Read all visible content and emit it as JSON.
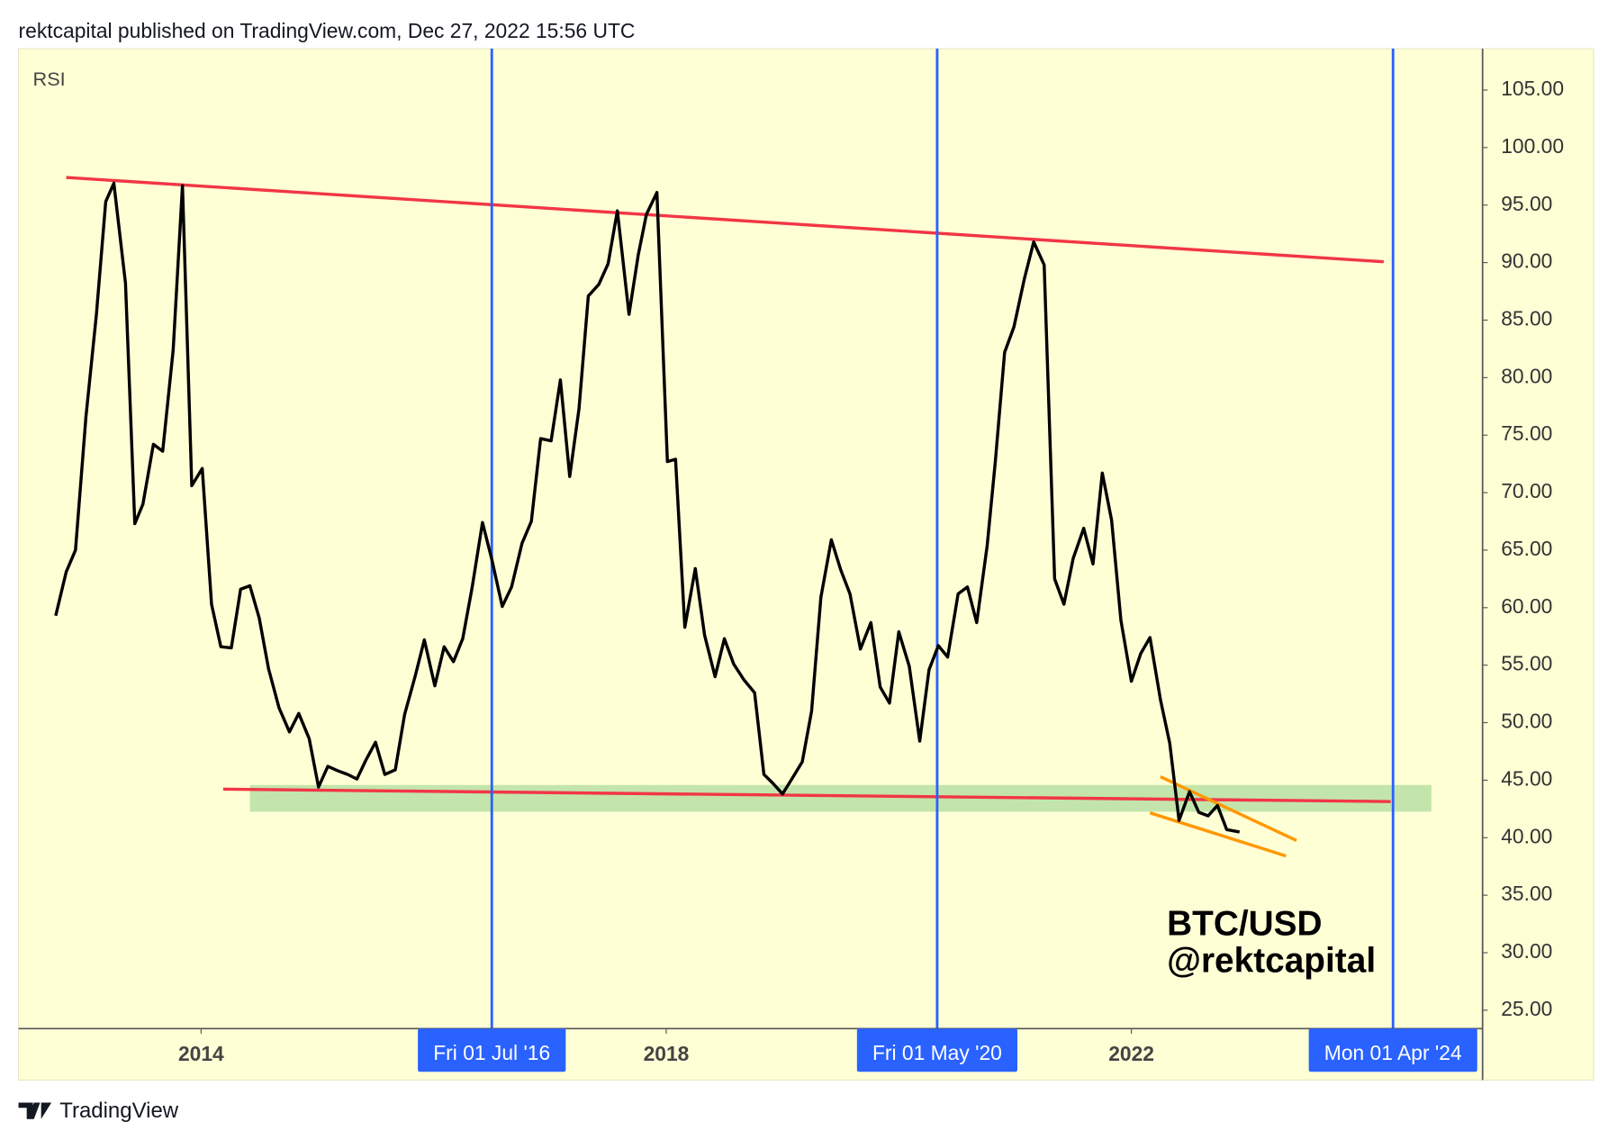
{
  "header": "rektcapital published on TradingView.com, Dec 27, 2022 15:56 UTC",
  "footer": "TradingView",
  "chart_data": {
    "type": "line",
    "indicator": "RSI",
    "watermark": [
      "BTC/USD",
      "@rektcapital"
    ],
    "color": "#000000",
    "x": [
      2012.75,
      2012.84,
      2012.92,
      2013.01,
      2013.1,
      2013.18,
      2013.25,
      2013.35,
      2013.43,
      2013.5,
      2013.59,
      2013.67,
      2013.76,
      2013.84,
      2013.92,
      2014.01,
      2014.09,
      2014.17,
      2014.26,
      2014.34,
      2014.42,
      2014.5,
      2014.58,
      2014.67,
      2014.76,
      2014.84,
      2014.93,
      2015.01,
      2015.09,
      2015.18,
      2015.26,
      2015.34,
      2015.42,
      2015.5,
      2015.58,
      2015.67,
      2015.75,
      2015.84,
      2015.92,
      2016.01,
      2016.09,
      2016.17,
      2016.25,
      2016.33,
      2016.42,
      2016.5,
      2016.59,
      2016.67,
      2016.76,
      2016.84,
      2016.92,
      2017.01,
      2017.09,
      2017.17,
      2017.25,
      2017.33,
      2017.42,
      2017.5,
      2017.58,
      2017.68,
      2017.76,
      2017.83,
      2017.92,
      2018.01,
      2018.08,
      2018.16,
      2018.25,
      2018.33,
      2018.42,
      2018.5,
      2018.58,
      2018.67,
      2018.76,
      2018.84,
      2018.92,
      2019.0,
      2019.08,
      2019.17,
      2019.25,
      2019.33,
      2019.42,
      2019.5,
      2019.58,
      2019.67,
      2019.76,
      2019.84,
      2019.92,
      2020.0,
      2020.09,
      2020.18,
      2020.26,
      2020.34,
      2020.42,
      2020.51,
      2020.59,
      2020.67,
      2020.76,
      2020.83,
      2020.91,
      2020.99,
      2021.08,
      2021.16,
      2021.25,
      2021.34,
      2021.42,
      2021.5,
      2021.59,
      2021.67,
      2021.75,
      2021.83,
      2021.91,
      2022.0,
      2022.08,
      2022.16,
      2022.25,
      2022.33,
      2022.41,
      2022.5,
      2022.58,
      2022.66,
      2022.74,
      2022.82,
      2022.93
    ],
    "values": [
      59.3,
      63.1,
      65.0,
      76.6,
      85.5,
      95.3,
      96.9,
      88.2,
      67.3,
      69.0,
      74.2,
      73.6,
      82.4,
      96.7,
      70.6,
      72.1,
      60.3,
      56.6,
      56.5,
      61.6,
      61.9,
      59.1,
      54.7,
      51.3,
      49.2,
      50.8,
      48.6,
      44.4,
      46.2,
      45.8,
      45.5,
      45.1,
      46.8,
      48.3,
      45.5,
      45.9,
      50.7,
      54.0,
      57.2,
      53.2,
      56.6,
      55.3,
      57.3,
      61.7,
      67.4,
      64.2,
      60.1,
      61.8,
      65.6,
      67.5,
      74.7,
      74.5,
      79.8,
      71.4,
      77.3,
      87.1,
      88.1,
      89.9,
      94.5,
      85.5,
      90.7,
      94.2,
      96.1,
      72.7,
      72.9,
      58.3,
      63.4,
      57.6,
      54.0,
      57.3,
      55.1,
      53.7,
      52.6,
      45.5,
      44.7,
      43.8,
      45.1,
      46.6,
      51.0,
      60.9,
      65.9,
      63.3,
      61.2,
      56.4,
      58.7,
      53.1,
      51.7,
      57.9,
      54.9,
      48.4,
      54.6,
      56.7,
      55.7,
      61.2,
      61.8,
      58.7,
      65.4,
      72.7,
      82.2,
      84.4,
      88.6,
      91.8,
      89.8,
      62.5,
      60.3,
      64.3,
      66.9,
      63.8,
      71.7,
      67.6,
      58.9,
      53.6,
      56.0,
      57.4,
      52.0,
      48.2,
      41.5,
      44.0,
      42.2,
      41.9,
      42.8,
      40.7,
      40.5
    ],
    "xlim": [
      2012.43,
      2025.02
    ],
    "ylim": [
      23.4,
      108.6
    ],
    "xticks": [
      {
        "value": 2014,
        "label": "2014"
      },
      {
        "value": 2018,
        "label": "2018"
      },
      {
        "value": 2022,
        "label": "2022"
      }
    ],
    "yticks": [
      {
        "value": 25,
        "label": "25.00"
      },
      {
        "value": 30,
        "label": "30.00"
      },
      {
        "value": 35,
        "label": "35.00"
      },
      {
        "value": 40,
        "label": "40.00"
      },
      {
        "value": 45,
        "label": "45.00"
      },
      {
        "value": 50,
        "label": "50.00"
      },
      {
        "value": 55,
        "label": "55.00"
      },
      {
        "value": 60,
        "label": "60.00"
      },
      {
        "value": 65,
        "label": "65.00"
      },
      {
        "value": 70,
        "label": "70.00"
      },
      {
        "value": 75,
        "label": "75.00"
      },
      {
        "value": 80,
        "label": "80.00"
      },
      {
        "value": 85,
        "label": "85.00"
      },
      {
        "value": 90,
        "label": "90.00"
      },
      {
        "value": 95,
        "label": "95.00"
      },
      {
        "value": 100,
        "label": "100.00"
      },
      {
        "value": 105,
        "label": "105.00"
      }
    ],
    "vlines": [
      {
        "x": 2016.5,
        "label": "Fri 01 Jul '16"
      },
      {
        "x": 2020.33,
        "label": "Fri 01 May '20"
      },
      {
        "x": 2024.25,
        "label": "Mon 01 Apr '24"
      }
    ],
    "vline_color": "#2962ff",
    "trendlines": [
      {
        "color": "#f23645",
        "x": [
          2012.84,
          2024.17
        ],
        "y": [
          97.4,
          90.07
        ]
      },
      {
        "color": "#f23645",
        "x": [
          2014.19,
          2024.23
        ],
        "y": [
          44.22,
          43.14
        ]
      },
      {
        "color": "#ff9800",
        "x": [
          2022.25,
          2023.42
        ],
        "y": [
          45.3,
          39.75
        ]
      },
      {
        "color": "#ff9800",
        "x": [
          2022.16,
          2023.33
        ],
        "y": [
          42.16,
          38.41
        ]
      }
    ],
    "zone": {
      "color": "#b9e0a5",
      "x": [
        2014.42,
        2024.58
      ],
      "y": [
        44.58,
        42.26
      ]
    }
  }
}
